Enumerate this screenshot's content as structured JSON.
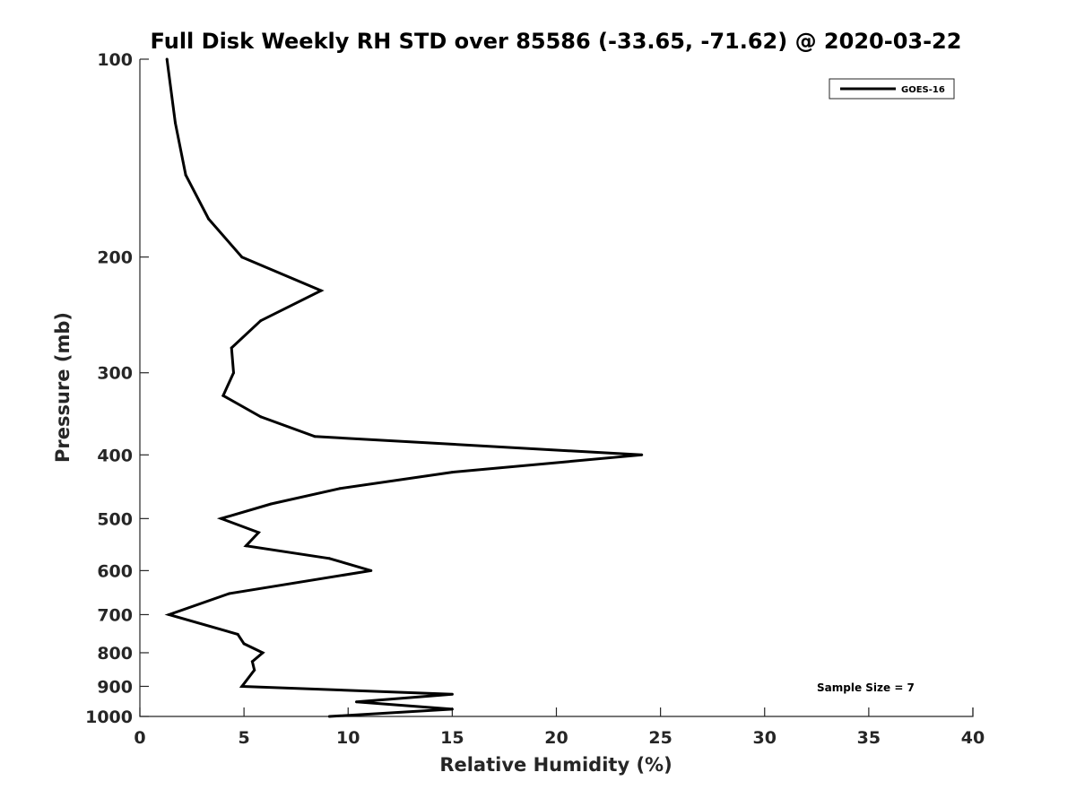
{
  "chart_data": {
    "type": "line",
    "title": "Full Disk Weekly RH STD over 85586 (-33.65, -71.62) @ 2020-03-22",
    "xlabel": "Relative Humidity (%)",
    "ylabel": "Pressure (mb)",
    "xlim": [
      0,
      40
    ],
    "ylim": [
      100,
      1000
    ],
    "yscale": "log",
    "y_reversed": true,
    "x_ticks": [
      "0",
      "5",
      "10",
      "15",
      "20",
      "25",
      "30",
      "35",
      "40"
    ],
    "y_ticks": [
      "100",
      "200",
      "300",
      "400",
      "500",
      "600",
      "700",
      "800",
      "900",
      "1000"
    ],
    "grid": false,
    "legend_position": "top-right",
    "series": [
      {
        "name": "GOES-16",
        "color": "#000000",
        "points": [
          {
            "x": 1.3,
            "y": 100
          },
          {
            "x": 1.7,
            "y": 125
          },
          {
            "x": 2.2,
            "y": 150
          },
          {
            "x": 3.3,
            "y": 175
          },
          {
            "x": 4.9,
            "y": 200
          },
          {
            "x": 8.7,
            "y": 225
          },
          {
            "x": 5.8,
            "y": 250
          },
          {
            "x": 4.4,
            "y": 275
          },
          {
            "x": 4.5,
            "y": 300
          },
          {
            "x": 4.0,
            "y": 325
          },
          {
            "x": 5.8,
            "y": 350
          },
          {
            "x": 8.4,
            "y": 375
          },
          {
            "x": 24.1,
            "y": 400
          },
          {
            "x": 15.0,
            "y": 425
          },
          {
            "x": 9.6,
            "y": 450
          },
          {
            "x": 6.3,
            "y": 475
          },
          {
            "x": 3.9,
            "y": 500
          },
          {
            "x": 5.7,
            "y": 525
          },
          {
            "x": 5.1,
            "y": 550
          },
          {
            "x": 9.1,
            "y": 575
          },
          {
            "x": 11.1,
            "y": 600
          },
          {
            "x": 4.3,
            "y": 650
          },
          {
            "x": 1.4,
            "y": 700
          },
          {
            "x": 4.7,
            "y": 750
          },
          {
            "x": 5.0,
            "y": 775
          },
          {
            "x": 5.9,
            "y": 800
          },
          {
            "x": 5.4,
            "y": 825
          },
          {
            "x": 5.5,
            "y": 850
          },
          {
            "x": 4.9,
            "y": 900
          },
          {
            "x": 15.0,
            "y": 925
          },
          {
            "x": 10.4,
            "y": 950
          },
          {
            "x": 15.0,
            "y": 975
          },
          {
            "x": 9.1,
            "y": 1000
          }
        ]
      }
    ],
    "annotations": [
      {
        "text": "Sample Size = 7"
      }
    ]
  }
}
